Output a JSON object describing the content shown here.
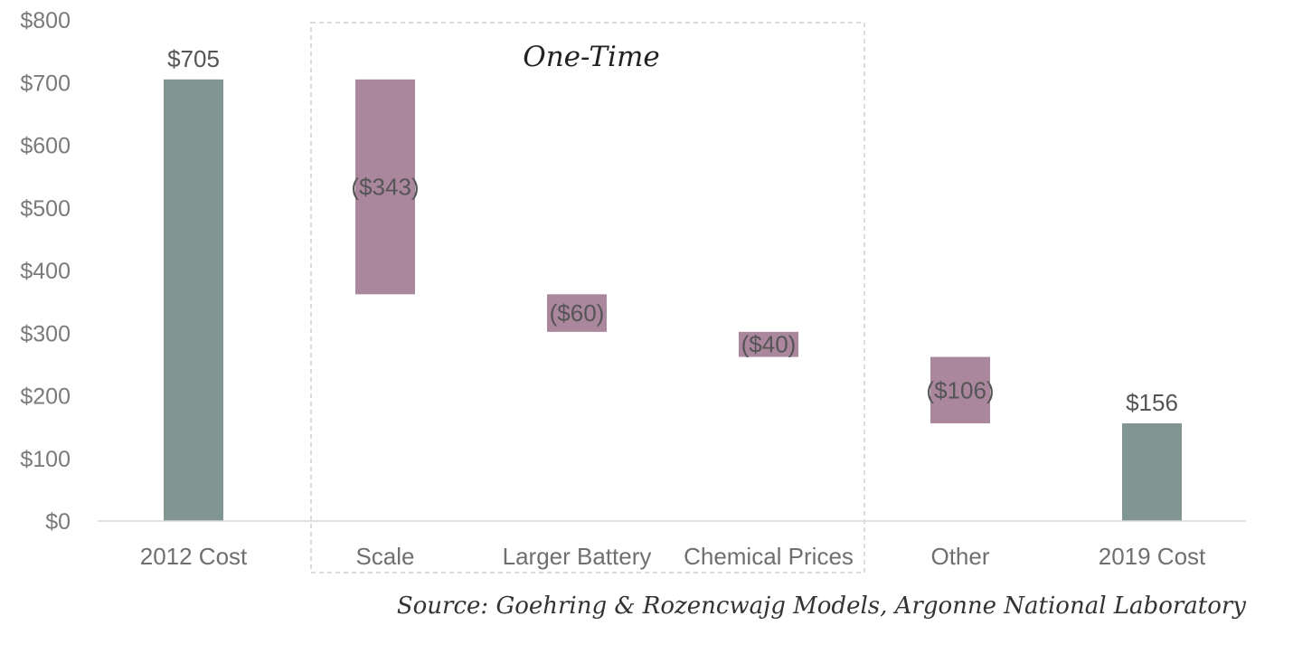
{
  "chart_data": {
    "type": "bar",
    "subtype": "waterfall",
    "categories": [
      "2012 Cost",
      "Scale",
      "Larger Battery",
      "Chemical Prices",
      "Other",
      "2019 Cost"
    ],
    "values": [
      705,
      -343,
      -60,
      -40,
      -106,
      156
    ],
    "value_labels": [
      "$705",
      "($343)",
      "($60)",
      "($40)",
      "($106)",
      "$156"
    ],
    "bar_kind": [
      "total",
      "change",
      "change",
      "change",
      "change",
      "total"
    ],
    "y_ticks": [
      "$0",
      "$100",
      "$200",
      "$300",
      "$400",
      "$500",
      "$600",
      "$700",
      "$800"
    ],
    "ylim": [
      0,
      800
    ],
    "grid": false,
    "colors": {
      "total": "#819593",
      "change": "#ab879d",
      "bracket": "#cfcfcf",
      "axis": "#d9d9d9"
    },
    "bracket": {
      "label": "One-Time",
      "from_category": "Scale",
      "to_category": "Chemical Prices"
    },
    "source": "Source: Goehring & Rozencwajg Models, Argonne National Laboratory"
  }
}
